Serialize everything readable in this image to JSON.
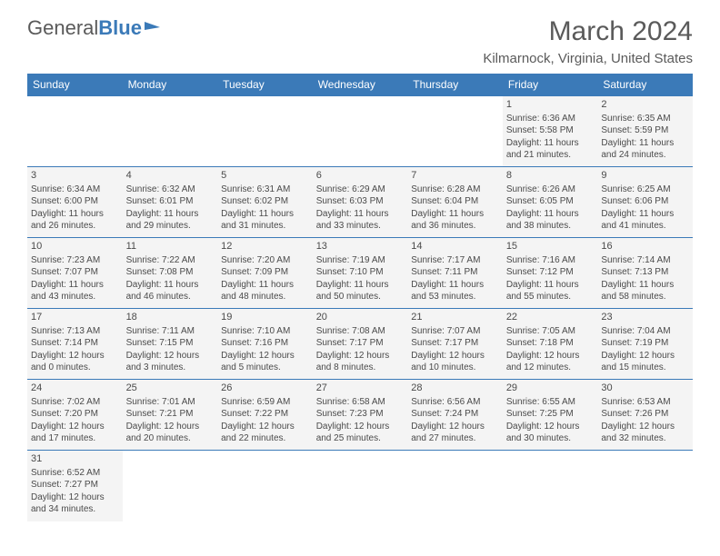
{
  "logo": {
    "part1": "General",
    "part2": "Blue"
  },
  "title": "March 2024",
  "location": "Kilmarnock, Virginia, United States",
  "daysOfWeek": [
    "Sunday",
    "Monday",
    "Tuesday",
    "Wednesday",
    "Thursday",
    "Friday",
    "Saturday"
  ],
  "colors": {
    "header_bg": "#3b7ab8",
    "cell_bg": "#f4f4f4",
    "text": "#4a4a4a"
  },
  "weeks": [
    [
      null,
      null,
      null,
      null,
      null,
      {
        "n": "1",
        "sr": "Sunrise: 6:36 AM",
        "ss": "Sunset: 5:58 PM",
        "d1": "Daylight: 11 hours",
        "d2": "and 21 minutes."
      },
      {
        "n": "2",
        "sr": "Sunrise: 6:35 AM",
        "ss": "Sunset: 5:59 PM",
        "d1": "Daylight: 11 hours",
        "d2": "and 24 minutes."
      }
    ],
    [
      {
        "n": "3",
        "sr": "Sunrise: 6:34 AM",
        "ss": "Sunset: 6:00 PM",
        "d1": "Daylight: 11 hours",
        "d2": "and 26 minutes."
      },
      {
        "n": "4",
        "sr": "Sunrise: 6:32 AM",
        "ss": "Sunset: 6:01 PM",
        "d1": "Daylight: 11 hours",
        "d2": "and 29 minutes."
      },
      {
        "n": "5",
        "sr": "Sunrise: 6:31 AM",
        "ss": "Sunset: 6:02 PM",
        "d1": "Daylight: 11 hours",
        "d2": "and 31 minutes."
      },
      {
        "n": "6",
        "sr": "Sunrise: 6:29 AM",
        "ss": "Sunset: 6:03 PM",
        "d1": "Daylight: 11 hours",
        "d2": "and 33 minutes."
      },
      {
        "n": "7",
        "sr": "Sunrise: 6:28 AM",
        "ss": "Sunset: 6:04 PM",
        "d1": "Daylight: 11 hours",
        "d2": "and 36 minutes."
      },
      {
        "n": "8",
        "sr": "Sunrise: 6:26 AM",
        "ss": "Sunset: 6:05 PM",
        "d1": "Daylight: 11 hours",
        "d2": "and 38 minutes."
      },
      {
        "n": "9",
        "sr": "Sunrise: 6:25 AM",
        "ss": "Sunset: 6:06 PM",
        "d1": "Daylight: 11 hours",
        "d2": "and 41 minutes."
      }
    ],
    [
      {
        "n": "10",
        "sr": "Sunrise: 7:23 AM",
        "ss": "Sunset: 7:07 PM",
        "d1": "Daylight: 11 hours",
        "d2": "and 43 minutes."
      },
      {
        "n": "11",
        "sr": "Sunrise: 7:22 AM",
        "ss": "Sunset: 7:08 PM",
        "d1": "Daylight: 11 hours",
        "d2": "and 46 minutes."
      },
      {
        "n": "12",
        "sr": "Sunrise: 7:20 AM",
        "ss": "Sunset: 7:09 PM",
        "d1": "Daylight: 11 hours",
        "d2": "and 48 minutes."
      },
      {
        "n": "13",
        "sr": "Sunrise: 7:19 AM",
        "ss": "Sunset: 7:10 PM",
        "d1": "Daylight: 11 hours",
        "d2": "and 50 minutes."
      },
      {
        "n": "14",
        "sr": "Sunrise: 7:17 AM",
        "ss": "Sunset: 7:11 PM",
        "d1": "Daylight: 11 hours",
        "d2": "and 53 minutes."
      },
      {
        "n": "15",
        "sr": "Sunrise: 7:16 AM",
        "ss": "Sunset: 7:12 PM",
        "d1": "Daylight: 11 hours",
        "d2": "and 55 minutes."
      },
      {
        "n": "16",
        "sr": "Sunrise: 7:14 AM",
        "ss": "Sunset: 7:13 PM",
        "d1": "Daylight: 11 hours",
        "d2": "and 58 minutes."
      }
    ],
    [
      {
        "n": "17",
        "sr": "Sunrise: 7:13 AM",
        "ss": "Sunset: 7:14 PM",
        "d1": "Daylight: 12 hours",
        "d2": "and 0 minutes."
      },
      {
        "n": "18",
        "sr": "Sunrise: 7:11 AM",
        "ss": "Sunset: 7:15 PM",
        "d1": "Daylight: 12 hours",
        "d2": "and 3 minutes."
      },
      {
        "n": "19",
        "sr": "Sunrise: 7:10 AM",
        "ss": "Sunset: 7:16 PM",
        "d1": "Daylight: 12 hours",
        "d2": "and 5 minutes."
      },
      {
        "n": "20",
        "sr": "Sunrise: 7:08 AM",
        "ss": "Sunset: 7:17 PM",
        "d1": "Daylight: 12 hours",
        "d2": "and 8 minutes."
      },
      {
        "n": "21",
        "sr": "Sunrise: 7:07 AM",
        "ss": "Sunset: 7:17 PM",
        "d1": "Daylight: 12 hours",
        "d2": "and 10 minutes."
      },
      {
        "n": "22",
        "sr": "Sunrise: 7:05 AM",
        "ss": "Sunset: 7:18 PM",
        "d1": "Daylight: 12 hours",
        "d2": "and 12 minutes."
      },
      {
        "n": "23",
        "sr": "Sunrise: 7:04 AM",
        "ss": "Sunset: 7:19 PM",
        "d1": "Daylight: 12 hours",
        "d2": "and 15 minutes."
      }
    ],
    [
      {
        "n": "24",
        "sr": "Sunrise: 7:02 AM",
        "ss": "Sunset: 7:20 PM",
        "d1": "Daylight: 12 hours",
        "d2": "and 17 minutes."
      },
      {
        "n": "25",
        "sr": "Sunrise: 7:01 AM",
        "ss": "Sunset: 7:21 PM",
        "d1": "Daylight: 12 hours",
        "d2": "and 20 minutes."
      },
      {
        "n": "26",
        "sr": "Sunrise: 6:59 AM",
        "ss": "Sunset: 7:22 PM",
        "d1": "Daylight: 12 hours",
        "d2": "and 22 minutes."
      },
      {
        "n": "27",
        "sr": "Sunrise: 6:58 AM",
        "ss": "Sunset: 7:23 PM",
        "d1": "Daylight: 12 hours",
        "d2": "and 25 minutes."
      },
      {
        "n": "28",
        "sr": "Sunrise: 6:56 AM",
        "ss": "Sunset: 7:24 PM",
        "d1": "Daylight: 12 hours",
        "d2": "and 27 minutes."
      },
      {
        "n": "29",
        "sr": "Sunrise: 6:55 AM",
        "ss": "Sunset: 7:25 PM",
        "d1": "Daylight: 12 hours",
        "d2": "and 30 minutes."
      },
      {
        "n": "30",
        "sr": "Sunrise: 6:53 AM",
        "ss": "Sunset: 7:26 PM",
        "d1": "Daylight: 12 hours",
        "d2": "and 32 minutes."
      }
    ],
    [
      {
        "n": "31",
        "sr": "Sunrise: 6:52 AM",
        "ss": "Sunset: 7:27 PM",
        "d1": "Daylight: 12 hours",
        "d2": "and 34 minutes."
      },
      null,
      null,
      null,
      null,
      null,
      null
    ]
  ]
}
